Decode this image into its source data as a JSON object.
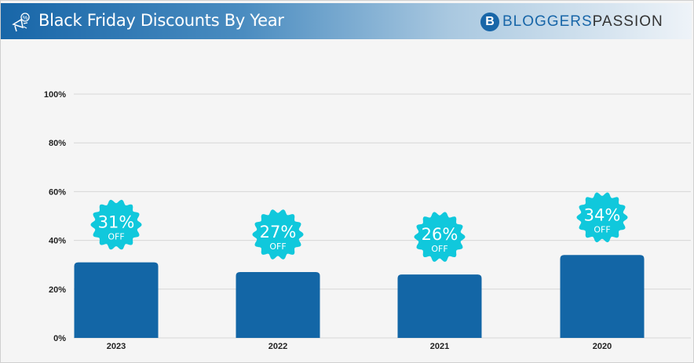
{
  "header": {
    "title": "Black Friday Discounts By Year",
    "icon": "megaphone-discount-icon",
    "logo": {
      "part1": "BLOGGERS",
      "part2": "PASSION",
      "mark": "B"
    }
  },
  "colors": {
    "bar": "#1366a6",
    "badge": "#10c8dc",
    "grid": "#d6d6d6"
  },
  "chart_data": {
    "type": "bar",
    "title": "Black Friday Discounts By Year",
    "categories": [
      "2023",
      "2022",
      "2021",
      "2020"
    ],
    "values": [
      31,
      27,
      26,
      34
    ],
    "data_labels": [
      {
        "value": "31%",
        "suffix": "OFF"
      },
      {
        "value": "27%",
        "suffix": "OFF"
      },
      {
        "value": "26%",
        "suffix": "OFF"
      },
      {
        "value": "34%",
        "suffix": "OFF"
      }
    ],
    "yticks": [
      "0%",
      "20%",
      "40%",
      "60%",
      "80%",
      "100%"
    ],
    "ylim": [
      0,
      100
    ],
    "grid": true,
    "xlabel": "",
    "ylabel": ""
  }
}
